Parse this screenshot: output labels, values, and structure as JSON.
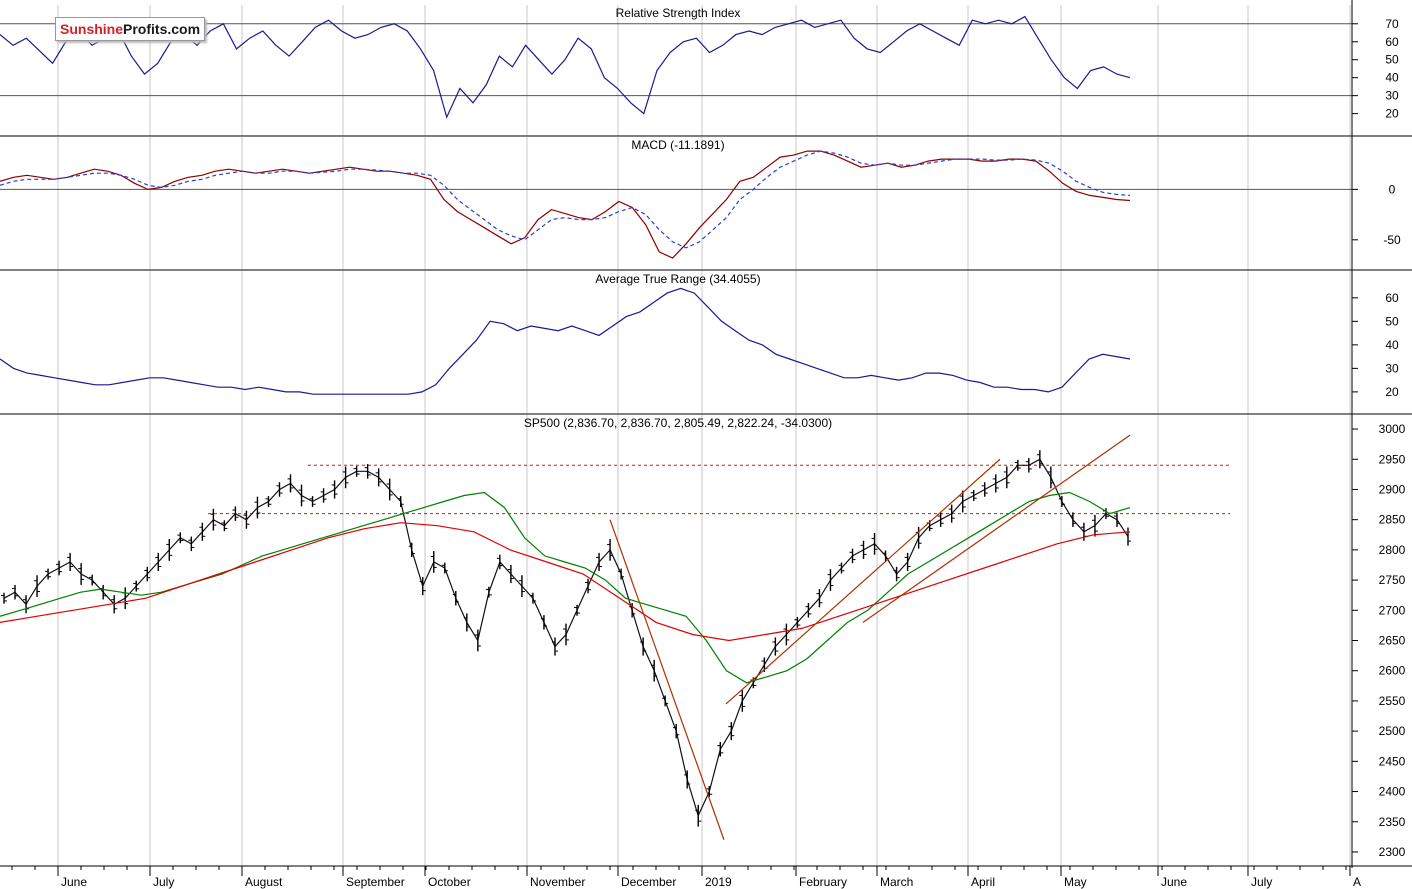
{
  "logo": {
    "part1": "Sunshine",
    "part2": "Profits.com"
  },
  "colors": {
    "indicator_line": "#1a1a8c",
    "macd_line": "#8b0000",
    "ma_short": "#008000",
    "ma_long": "#e00000",
    "trend_line": "#b03000",
    "resistance": "#cc2200",
    "grid": "#c8c8c8",
    "border": "#000000"
  },
  "x_axis": {
    "months": [
      "June",
      "July",
      "August",
      "September",
      "October",
      "November",
      "December",
      "2019",
      "February",
      "March",
      "April",
      "May",
      "June",
      "July",
      "A"
    ]
  },
  "chart_data": [
    {
      "type": "line",
      "title": "Relative Strength Index",
      "ylim": [
        12,
        76
      ],
      "yticks": [
        20,
        30,
        40,
        50,
        60,
        70
      ],
      "reference_lines": [
        30,
        70
      ],
      "series": [
        {
          "values": [
            64,
            58,
            62,
            55,
            48,
            60,
            66,
            58,
            62,
            66,
            52,
            42,
            48,
            60,
            64,
            58,
            66,
            70,
            56,
            62,
            66,
            58,
            52,
            60,
            68,
            72,
            66,
            62,
            64,
            68,
            70,
            66,
            56,
            44,
            18,
            34,
            26,
            36,
            52,
            46,
            58,
            50,
            42,
            50,
            62,
            56,
            40,
            34,
            26,
            20,
            44,
            54,
            60,
            62,
            54,
            58,
            64,
            66,
            64,
            68,
            70,
            72,
            68,
            70,
            72,
            62,
            56,
            54,
            60,
            66,
            70,
            66,
            62,
            58,
            72,
            70,
            72,
            70,
            74,
            62,
            50,
            40,
            34,
            44,
            46,
            42,
            40
          ]
        }
      ]
    },
    {
      "type": "line",
      "title": "MACD (-11.1891)",
      "ylim": [
        -72,
        44
      ],
      "yticks": [
        0,
        -50
      ],
      "reference_lines": [
        0
      ],
      "series": [
        {
          "values": [
            8,
            12,
            14,
            12,
            10,
            12,
            16,
            20,
            18,
            14,
            6,
            0,
            2,
            8,
            12,
            14,
            18,
            20,
            18,
            16,
            18,
            20,
            18,
            16,
            18,
            20,
            22,
            20,
            18,
            18,
            16,
            14,
            10,
            -10,
            -22,
            -30,
            -38,
            -46,
            -54,
            -48,
            -30,
            -20,
            -24,
            -28,
            -30,
            -22,
            -12,
            -18,
            -35,
            -62,
            -68,
            -54,
            -38,
            -24,
            -10,
            8,
            12,
            22,
            32,
            34,
            38,
            38,
            34,
            28,
            22,
            24,
            26,
            22,
            24,
            28,
            30,
            30,
            30,
            28,
            28,
            30,
            30,
            28,
            18,
            6,
            -2,
            -6,
            -8,
            -10,
            -11
          ]
        },
        {
          "values": [
            4,
            8,
            10,
            10,
            10,
            12,
            14,
            16,
            16,
            14,
            10,
            4,
            2,
            4,
            8,
            10,
            14,
            16,
            18,
            16,
            16,
            18,
            18,
            16,
            17,
            18,
            20,
            20,
            19,
            18,
            16,
            16,
            14,
            4,
            -10,
            -20,
            -30,
            -40,
            -46,
            -50,
            -40,
            -30,
            -28,
            -30,
            -30,
            -28,
            -22,
            -18,
            -25,
            -40,
            -52,
            -58,
            -52,
            -40,
            -28,
            -10,
            0,
            12,
            22,
            28,
            34,
            38,
            36,
            32,
            26,
            24,
            26,
            24,
            24,
            26,
            28,
            30,
            30,
            30,
            29,
            29,
            30,
            29,
            26,
            18,
            8,
            2,
            -3,
            -5,
            -6
          ]
        }
      ]
    },
    {
      "type": "line",
      "title": "Average True Range (34.4055)",
      "ylim": [
        14,
        68
      ],
      "yticks": [
        20,
        30,
        40,
        50,
        60
      ],
      "series": [
        {
          "values": [
            34,
            30,
            28,
            27,
            26,
            25,
            24,
            23,
            23,
            24,
            25,
            26,
            26,
            25,
            24,
            23,
            22,
            22,
            21,
            22,
            21,
            20,
            20,
            19,
            19,
            19,
            19,
            19,
            19,
            19,
            19,
            20,
            23,
            30,
            36,
            42,
            50,
            49,
            46,
            48,
            47,
            46,
            48,
            46,
            44,
            48,
            52,
            54,
            58,
            62,
            64,
            62,
            56,
            50,
            46,
            42,
            40,
            36,
            34,
            32,
            30,
            28,
            26,
            26,
            27,
            26,
            25,
            26,
            28,
            28,
            27,
            25,
            24,
            22,
            22,
            21,
            21,
            20,
            22,
            28,
            34,
            36,
            35,
            34
          ]
        }
      ]
    },
    {
      "type": "line",
      "title": "SP500 (2,836.70, 2,836.70, 2,805.49, 2,822.24, -34.0300)",
      "ylim": [
        2290,
        3010
      ],
      "yticks": [
        2300,
        2350,
        2400,
        2450,
        2500,
        2550,
        2600,
        2650,
        2700,
        2750,
        2800,
        2850,
        2900,
        2950,
        3000
      ],
      "series": [
        {
          "values": [
            2720,
            2730,
            2710,
            2740,
            2760,
            2770,
            2780,
            2760,
            2750,
            2730,
            2710,
            2720,
            2740,
            2760,
            2780,
            2800,
            2820,
            2810,
            2830,
            2850,
            2840,
            2860,
            2850,
            2870,
            2880,
            2900,
            2910,
            2890,
            2880,
            2890,
            2900,
            2920,
            2930,
            2930,
            2920,
            2900,
            2880,
            2800,
            2740,
            2780,
            2770,
            2720,
            2680,
            2650,
            2730,
            2780,
            2760,
            2740,
            2720,
            2680,
            2640,
            2660,
            2700,
            2740,
            2780,
            2800,
            2760,
            2700,
            2640,
            2600,
            2550,
            2500,
            2420,
            2360,
            2400,
            2470,
            2500,
            2550,
            2580,
            2610,
            2640,
            2660,
            2680,
            2700,
            2720,
            2750,
            2770,
            2790,
            2800,
            2810,
            2790,
            2760,
            2780,
            2820,
            2840,
            2850,
            2860,
            2880,
            2890,
            2900,
            2910,
            2920,
            2940,
            2940,
            2950,
            2920,
            2880,
            2850,
            2830,
            2840,
            2860,
            2850,
            2822
          ]
        },
        {
          "name": "SMA short",
          "values": [
            2690,
            2700,
            2710,
            2720,
            2730,
            2735,
            2730,
            2725,
            2730,
            2740,
            2750,
            2760,
            2775,
            2790,
            2800,
            2810,
            2820,
            2830,
            2840,
            2850,
            2860,
            2870,
            2880,
            2890,
            2895,
            2870,
            2820,
            2790,
            2780,
            2770,
            2750,
            2720,
            2710,
            2700,
            2690,
            2650,
            2600,
            2580,
            2590,
            2600,
            2620,
            2650,
            2680,
            2700,
            2730,
            2760,
            2780,
            2800,
            2820,
            2840,
            2860,
            2880,
            2890,
            2895,
            2880,
            2860,
            2870
          ]
        },
        {
          "name": "SMA long",
          "values": [
            2680,
            2690,
            2700,
            2710,
            2720,
            2740,
            2760,
            2780,
            2800,
            2820,
            2835,
            2845,
            2840,
            2830,
            2800,
            2780,
            2760,
            2720,
            2680,
            2660,
            2650,
            2660,
            2670,
            2690,
            2710,
            2730,
            2750,
            2770,
            2790,
            2810,
            2825,
            2830
          ]
        }
      ],
      "reference_lines": [
        2940,
        2860
      ]
    }
  ]
}
